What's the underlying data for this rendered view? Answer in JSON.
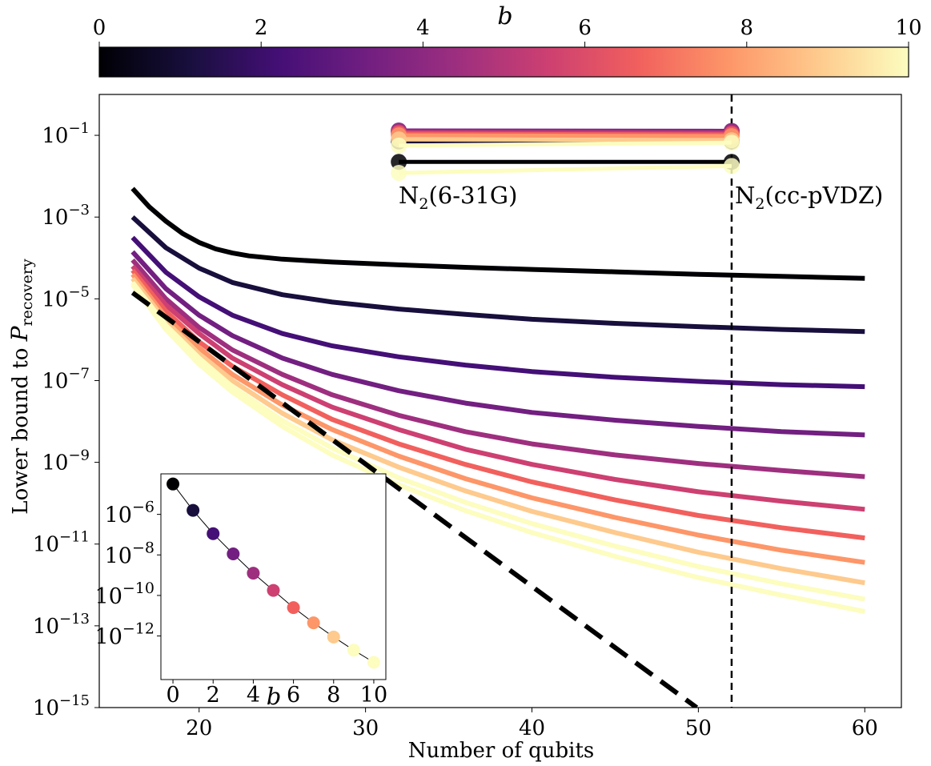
{
  "chart_data": [
    {
      "type": "line",
      "xlabel": "Number of qubits",
      "ylabel_prefix": "Lower bound to ",
      "ylabel_symbol": "P",
      "ylabel_sub": "recovery",
      "xlim": [
        14,
        62.2
      ],
      "ylim_log10": [
        -15,
        0
      ],
      "y_scale": "log",
      "x_ticks": [
        20,
        30,
        40,
        50,
        60
      ],
      "y_tick_exponents": [
        -1,
        -3,
        -5,
        -7,
        -9,
        -11,
        -13,
        -15
      ],
      "y_tick_base": "10",
      "grid": false,
      "b_colors": [
        "#000004",
        "#180f3d",
        "#440f76",
        "#721f81",
        "#9e2f7f",
        "#cd4071",
        "#f1605d",
        "#fd9668",
        "#feca8d",
        "#fcfdbf"
      ],
      "series_log10": [
        {
          "name": "b=0",
          "x": [
            16,
            17,
            18,
            19,
            20,
            21,
            22,
            23,
            25,
            28,
            32,
            36,
            40,
            45,
            50,
            55,
            60
          ],
          "values": [
            -2.3,
            -2.75,
            -3.1,
            -3.4,
            -3.62,
            -3.78,
            -3.88,
            -3.95,
            -4.03,
            -4.1,
            -4.17,
            -4.23,
            -4.28,
            -4.34,
            -4.4,
            -4.45,
            -4.5
          ]
        },
        {
          "name": "b=1",
          "x": [
            16,
            18,
            20,
            22,
            25,
            28,
            32,
            36,
            40,
            45,
            50,
            55,
            60
          ],
          "values": [
            -3.0,
            -3.75,
            -4.25,
            -4.6,
            -4.9,
            -5.08,
            -5.25,
            -5.38,
            -5.5,
            -5.6,
            -5.68,
            -5.75,
            -5.8
          ]
        },
        {
          "name": "b=2",
          "x": [
            16,
            18,
            20,
            22,
            25,
            28,
            32,
            36,
            40,
            45,
            50,
            55,
            60
          ],
          "values": [
            -3.5,
            -4.35,
            -4.95,
            -5.4,
            -5.85,
            -6.15,
            -6.42,
            -6.62,
            -6.78,
            -6.92,
            -7.02,
            -7.1,
            -7.15
          ]
        },
        {
          "name": "b=3",
          "x": [
            16,
            18,
            20,
            22,
            25,
            28,
            32,
            36,
            40,
            45,
            50,
            55,
            60
          ],
          "values": [
            -3.85,
            -4.75,
            -5.4,
            -5.9,
            -6.45,
            -6.85,
            -7.25,
            -7.55,
            -7.78,
            -7.97,
            -8.12,
            -8.25,
            -8.33
          ]
        },
        {
          "name": "b=4",
          "x": [
            16,
            18,
            20,
            22,
            25,
            28,
            32,
            36,
            40,
            45,
            50,
            55,
            60
          ],
          "values": [
            -4.05,
            -5.0,
            -5.7,
            -6.25,
            -6.85,
            -7.35,
            -7.85,
            -8.25,
            -8.55,
            -8.82,
            -9.03,
            -9.2,
            -9.35
          ]
        },
        {
          "name": "b=5",
          "x": [
            16,
            18,
            20,
            22,
            25,
            28,
            32,
            36,
            40,
            45,
            50,
            55,
            60
          ],
          "values": [
            -4.2,
            -5.15,
            -5.85,
            -6.45,
            -7.1,
            -7.65,
            -8.2,
            -8.68,
            -9.05,
            -9.42,
            -9.72,
            -9.95,
            -10.15
          ]
        },
        {
          "name": "b=6",
          "x": [
            16,
            18,
            20,
            22,
            25,
            28,
            32,
            36,
            40,
            45,
            50,
            55,
            60
          ],
          "values": [
            -4.3,
            -5.3,
            -6.05,
            -6.65,
            -7.35,
            -7.95,
            -8.55,
            -9.05,
            -9.48,
            -9.92,
            -10.3,
            -10.6,
            -10.85
          ]
        },
        {
          "name": "b=7",
          "x": [
            16,
            18,
            20,
            22,
            25,
            28,
            32,
            36,
            40,
            45,
            50,
            55,
            60
          ],
          "values": [
            -4.4,
            -5.45,
            -6.2,
            -6.85,
            -7.6,
            -8.2,
            -8.85,
            -9.4,
            -9.87,
            -10.35,
            -10.78,
            -11.15,
            -11.45
          ]
        },
        {
          "name": "b=8",
          "x": [
            16,
            18,
            20,
            22,
            25,
            28,
            32,
            36,
            40,
            45,
            50,
            55,
            60
          ],
          "values": [
            -4.5,
            -5.55,
            -6.35,
            -7.0,
            -7.8,
            -8.45,
            -9.12,
            -9.7,
            -10.2,
            -10.72,
            -11.2,
            -11.6,
            -11.95
          ]
        },
        {
          "name": "b=9",
          "x": [
            16,
            18,
            20,
            22,
            25,
            28,
            32,
            36,
            40,
            45,
            50,
            55,
            60
          ],
          "values": [
            -4.6,
            -5.65,
            -6.45,
            -7.15,
            -7.98,
            -8.65,
            -9.38,
            -9.98,
            -10.5,
            -11.05,
            -11.55,
            -11.97,
            -12.35
          ]
        },
        {
          "name": "b=10",
          "x": [
            16,
            18,
            20,
            22,
            25,
            28,
            32,
            36,
            40,
            45,
            50,
            55,
            60
          ],
          "values": [
            -4.65,
            -5.75,
            -6.6,
            -7.28,
            -8.12,
            -8.82,
            -9.55,
            -10.18,
            -10.72,
            -11.3,
            -11.82,
            -12.25,
            -12.65
          ]
        }
      ],
      "reference_dashed_log10": {
        "x": [
          16,
          49.9
        ],
        "values": [
          -4.85,
          -15
        ]
      },
      "vline_x": 52,
      "markers": {
        "x": [
          32,
          52
        ],
        "series_log10": [
          {
            "b": 0,
            "values": [
              -1.65,
              -1.65
            ]
          },
          {
            "b": 1,
            "values": [
              -1.15,
              -1.15
            ]
          },
          {
            "b": 2,
            "values": [
              -0.9,
              -0.91
            ]
          },
          {
            "b": 3,
            "values": [
              -0.88,
              -0.89
            ]
          },
          {
            "b": 4,
            "values": [
              -0.9,
              -0.91
            ]
          },
          {
            "b": 5,
            "values": [
              -0.93,
              -0.95
            ]
          },
          {
            "b": 6,
            "values": [
              -0.96,
              -0.98
            ]
          },
          {
            "b": 7,
            "values": [
              -1.0,
              -1.02
            ]
          },
          {
            "b": 8,
            "values": [
              -1.1,
              -1.12
            ]
          },
          {
            "b": 9,
            "values": [
              -1.25,
              -1.18
            ]
          },
          {
            "b": 10,
            "values": [
              -1.92,
              -1.75
            ]
          }
        ]
      },
      "annotations": [
        {
          "prefix": "N",
          "sub": "2",
          "suffix": "(6-31G)"
        },
        {
          "prefix": "N",
          "sub": "2",
          "suffix": "(cc-pVDZ)"
        }
      ],
      "colorbar": {
        "label": "b",
        "ticks": [
          0,
          2,
          4,
          6,
          8,
          10
        ],
        "range": [
          0,
          10
        ],
        "colormap": "magma"
      }
    },
    {
      "type": "scatter",
      "inset": true,
      "xlabel": "b",
      "x": [
        0,
        1,
        2,
        3,
        4,
        5,
        6,
        7,
        8,
        9,
        10
      ],
      "values_log10": [
        -4.5,
        -5.8,
        -6.95,
        -7.95,
        -8.9,
        -9.75,
        -10.6,
        -11.35,
        -12.05,
        -12.7,
        -13.3
      ],
      "xlim": [
        -0.6,
        10.6
      ],
      "ylim_log10": [
        -14.15,
        -4.0
      ],
      "x_ticks": [
        0,
        2,
        4,
        6,
        8,
        10
      ],
      "y_tick_exponents": [
        -6,
        -8,
        -10,
        -12
      ],
      "y_tick_base": "10"
    }
  ]
}
